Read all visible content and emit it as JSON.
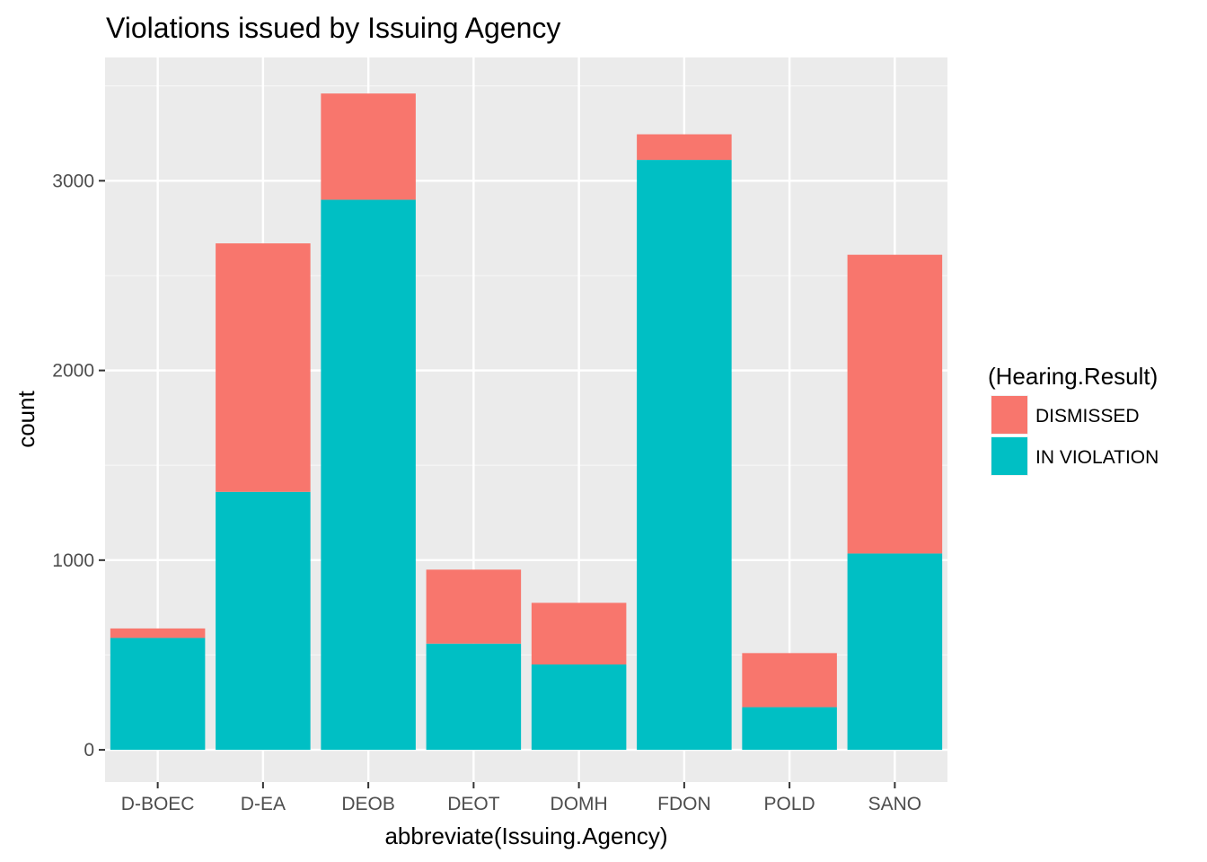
{
  "chart_data": {
    "type": "bar",
    "stacked": true,
    "title": "Violations issued by Issuing Agency",
    "xlabel": "abbreviate(Issuing.Agency)",
    "ylabel": "count",
    "categories": [
      "D-BOEC",
      "D-EA",
      "DEOB",
      "DEOT",
      "DOMH",
      "FDON",
      "POLD",
      "SANO"
    ],
    "series": [
      {
        "name": "IN VIOLATION",
        "color": "#00BFC4",
        "values": [
          590,
          1360,
          2900,
          560,
          450,
          3110,
          225,
          1035
        ]
      },
      {
        "name": "DISMISSED",
        "color": "#F8766D",
        "values": [
          50,
          1310,
          560,
          390,
          325,
          135,
          285,
          1575
        ]
      }
    ],
    "ylim": [
      -170,
      3650
    ],
    "yticks": [
      0,
      1000,
      2000,
      3000
    ],
    "ytick_labels": [
      "0",
      "1000",
      "2000",
      "3000"
    ],
    "grid": true,
    "legend": {
      "title": "(Hearing.Result)",
      "position": "right",
      "entries": [
        {
          "label": "DISMISSED",
          "color": "#F8766D"
        },
        {
          "label": "IN VIOLATION",
          "color": "#00BFC4"
        }
      ]
    }
  }
}
